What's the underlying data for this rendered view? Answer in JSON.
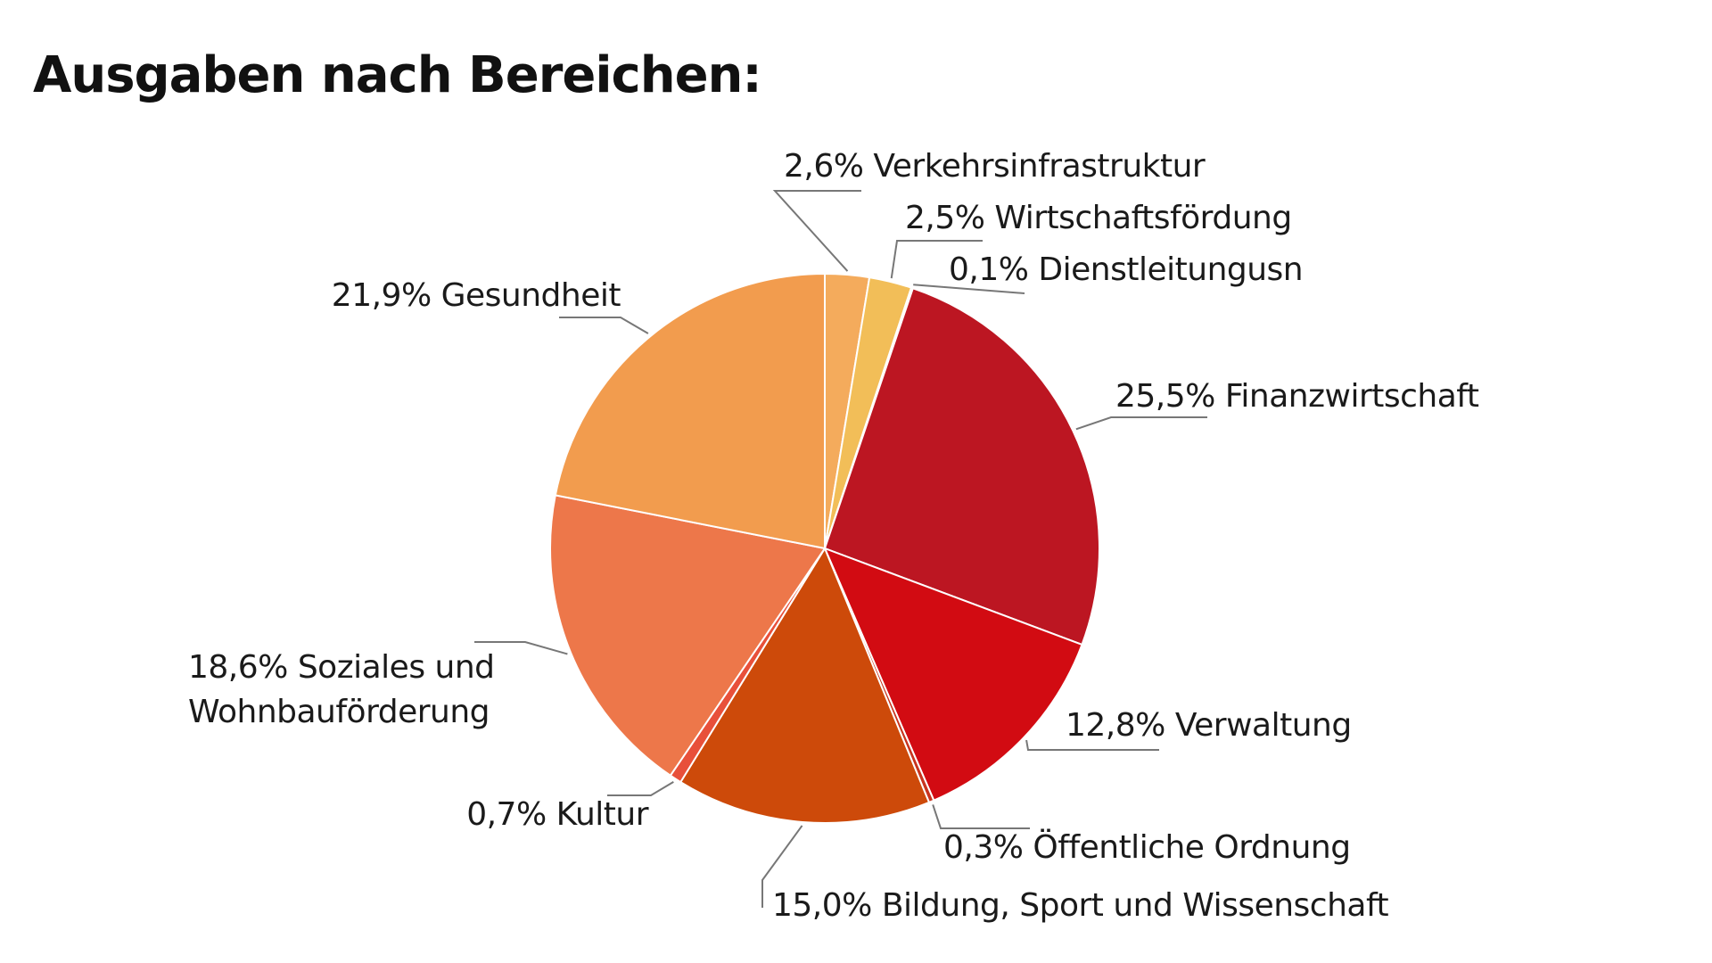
{
  "chart_data": {
    "type": "pie",
    "title": "Ausgaben nach Bereichen:",
    "categories": [
      "Verkehrsinfrastruktur",
      "Wirtschaftsfördung",
      "Dienstleitungusn",
      "Finanzwirtschaft",
      "Verwaltung",
      "Öffentliche Ordnung",
      "Bildung, Sport und Wissenschaft",
      "Kultur",
      "Soziales und Wohnbauförderung",
      "Gesundheit"
    ],
    "values": [
      2.6,
      2.5,
      0.1,
      25.5,
      12.8,
      0.3,
      15.0,
      0.7,
      18.6,
      21.9
    ],
    "value_labels": [
      "2,6%",
      "2,5%",
      "0,1%",
      "25,5%",
      "12,8%",
      "0,3%",
      "15,0%",
      "0,7%",
      "18,6%",
      "21,9%"
    ],
    "colors": [
      "#f4ab5c",
      "#f2be58",
      "#c4161c",
      "#bc1622",
      "#d20b12",
      "#c8341e",
      "#cd4a0a",
      "#e8503a",
      "#ed774a",
      "#f29c4e"
    ]
  }
}
